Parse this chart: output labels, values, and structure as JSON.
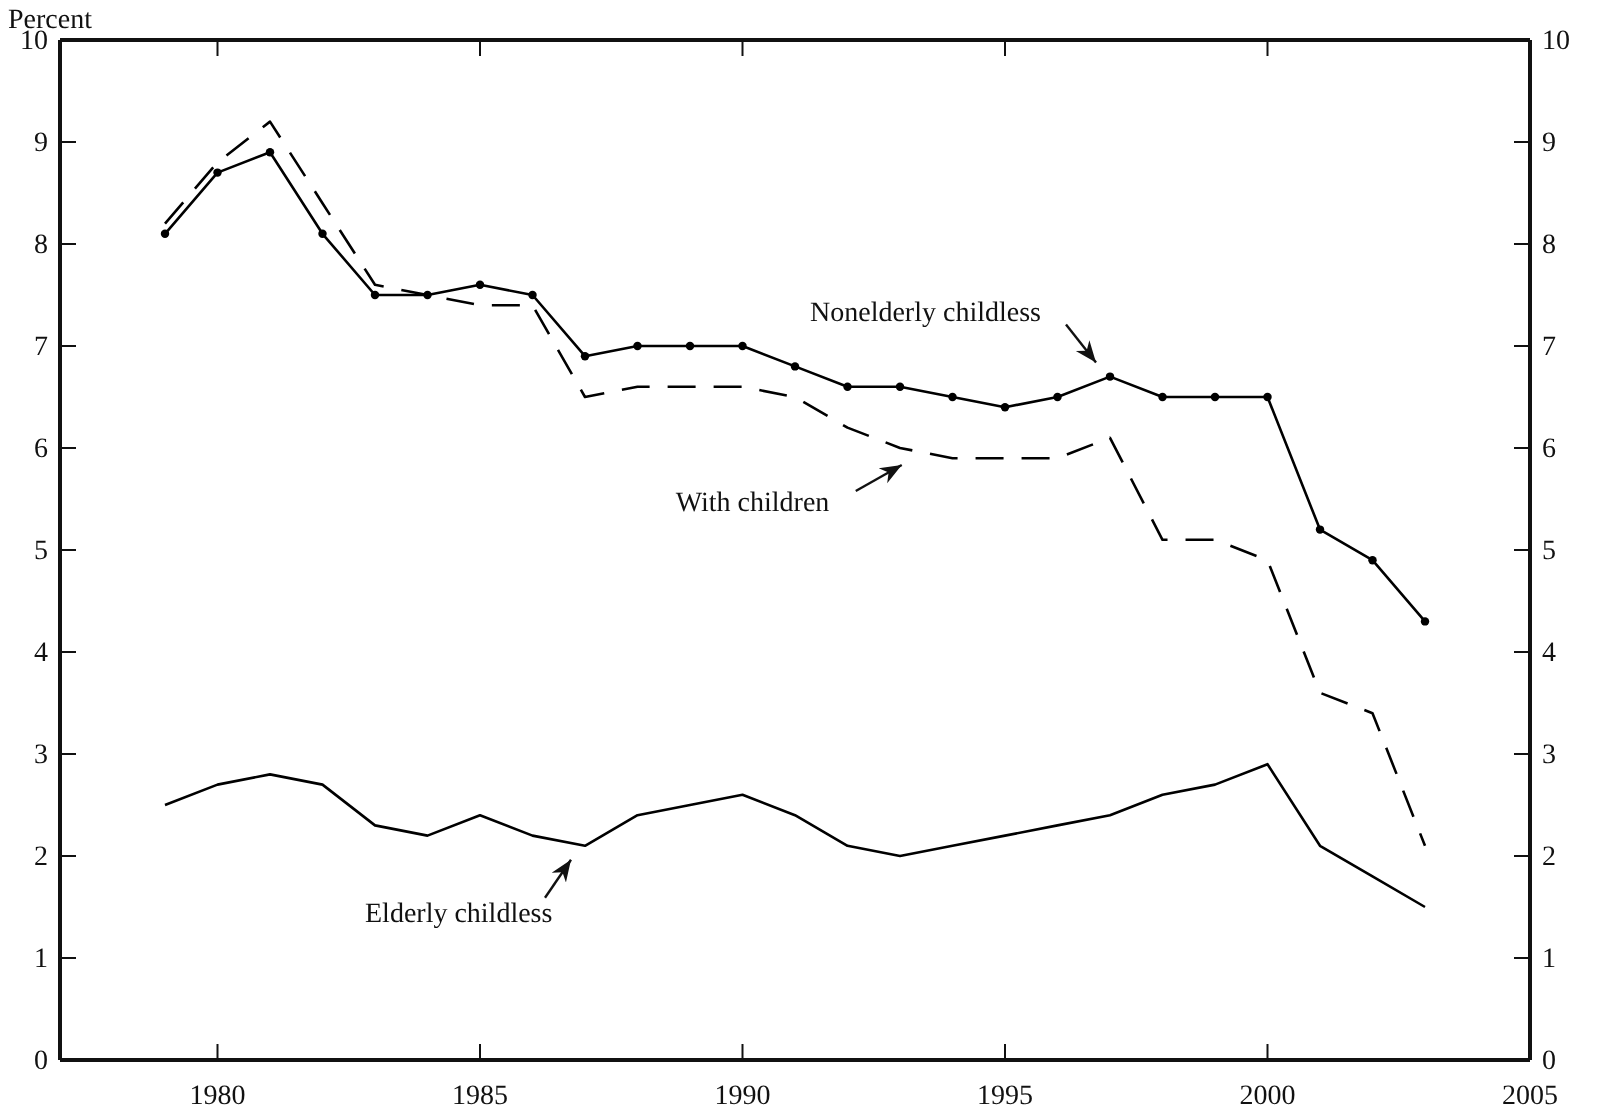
{
  "chart_data": {
    "type": "line",
    "ylabel": "Percent",
    "x": [
      1979,
      1980,
      1981,
      1982,
      1983,
      1984,
      1985,
      1986,
      1987,
      1988,
      1989,
      1990,
      1991,
      1992,
      1993,
      1994,
      1995,
      1996,
      1997,
      1998,
      1999,
      2000,
      2001,
      2002,
      2003
    ],
    "series": [
      {
        "name": "Nonelderly childless",
        "color": "#000000",
        "marker": "circle",
        "line_style": "solid",
        "values": [
          8.1,
          8.7,
          8.9,
          8.1,
          7.5,
          7.5,
          7.6,
          7.5,
          6.9,
          7.0,
          7.0,
          7.0,
          6.8,
          6.6,
          6.6,
          6.5,
          6.4,
          6.5,
          6.7,
          6.5,
          6.5,
          6.5,
          5.2,
          4.9,
          4.3
        ]
      },
      {
        "name": "With children",
        "color": "#000000",
        "marker": "none",
        "line_style": "dashed",
        "values": [
          8.2,
          8.8,
          9.2,
          8.4,
          7.6,
          7.5,
          7.4,
          7.4,
          6.5,
          6.6,
          6.6,
          6.6,
          6.5,
          6.2,
          6.0,
          5.9,
          5.9,
          5.9,
          6.1,
          5.1,
          5.1,
          4.9,
          3.6,
          3.4,
          2.1
        ]
      },
      {
        "name": "Elderly childless",
        "color": "#000000",
        "marker": "none",
        "line_style": "solid",
        "values": [
          2.5,
          2.7,
          2.8,
          2.7,
          2.3,
          2.2,
          2.4,
          2.2,
          2.1,
          2.4,
          2.5,
          2.6,
          2.4,
          2.1,
          2.0,
          2.1,
          2.2,
          2.3,
          2.4,
          2.6,
          2.7,
          2.9,
          2.1,
          1.8,
          1.5
        ]
      }
    ],
    "xlim": [
      1977,
      2005
    ],
    "xticks": [
      1980,
      1985,
      1990,
      1995,
      2000,
      2005
    ],
    "ylim": [
      0,
      10
    ],
    "yticks": [
      0,
      1,
      2,
      3,
      4,
      5,
      6,
      7,
      8,
      9,
      10
    ],
    "y2lim": [
      0,
      10
    ],
    "y2ticks": [
      0,
      1,
      2,
      3,
      4,
      5,
      6,
      7,
      8,
      9,
      10
    ],
    "grid": false
  }
}
